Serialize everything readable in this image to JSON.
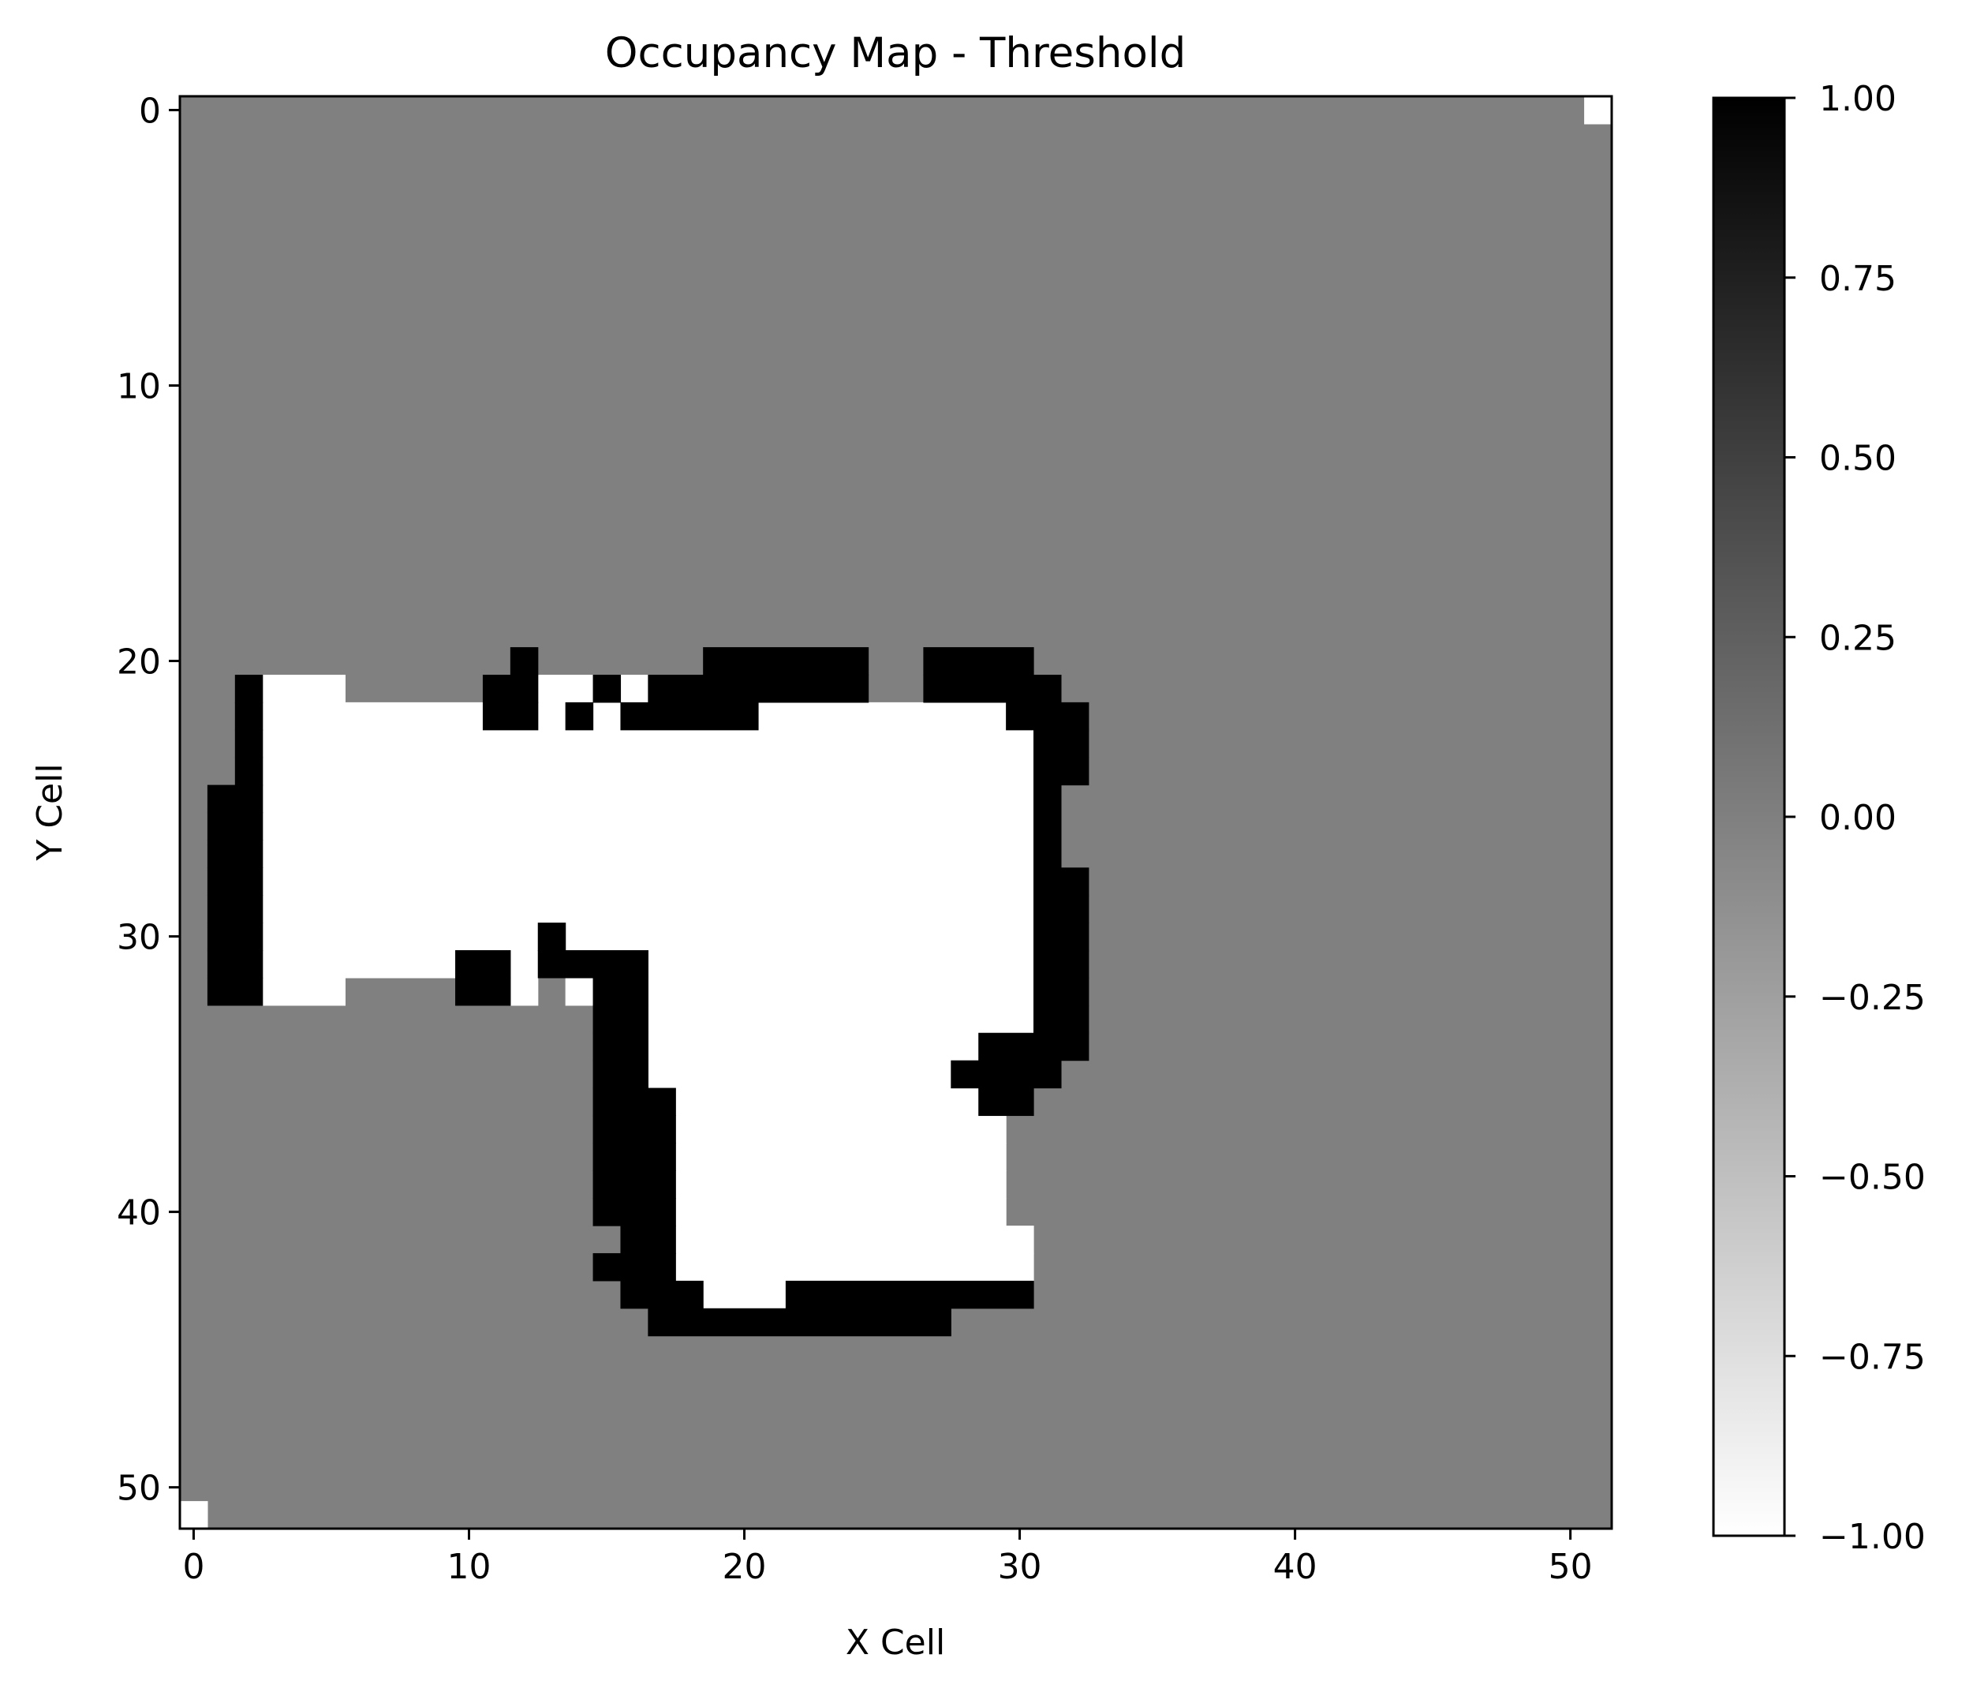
{
  "chart_data": {
    "type": "heatmap",
    "title": "Occupancy Map - Threshold",
    "xlabel": "X Cell",
    "ylabel": "Y Cell",
    "grid_size": [
      52,
      52
    ],
    "xlim": [
      -0.5,
      51.5
    ],
    "ylim": [
      51.5,
      -0.5
    ],
    "xticks": [
      0,
      10,
      20,
      30,
      40,
      50
    ],
    "yticks": [
      0,
      10,
      20,
      30,
      40,
      50
    ],
    "colormap": "gray_r",
    "clim": [
      -1.0,
      1.0
    ],
    "colorbar": {
      "ticks": [
        1.0,
        0.75,
        0.5,
        0.25,
        0.0,
        -0.25,
        -0.5,
        -0.75,
        -1.0
      ],
      "tick_labels": [
        "1.00",
        "0.75",
        "0.50",
        "0.25",
        "0.00",
        "−0.25",
        "−0.50",
        "−0.75",
        "−1.00"
      ]
    },
    "default_value": 0,
    "occupied_value": 1,
    "free_value": -1,
    "occupied_runs": [
      {
        "y": 20,
        "x": [
          12,
          12
        ]
      },
      {
        "y": 20,
        "x": [
          19,
          24
        ]
      },
      {
        "y": 20,
        "x": [
          27,
          30
        ]
      },
      {
        "y": 21,
        "x": [
          2,
          2
        ]
      },
      {
        "y": 21,
        "x": [
          11,
          12
        ]
      },
      {
        "y": 21,
        "x": [
          15,
          15
        ]
      },
      {
        "y": 21,
        "x": [
          17,
          24
        ]
      },
      {
        "y": 21,
        "x": [
          27,
          31
        ]
      },
      {
        "y": 22,
        "x": [
          2,
          2
        ]
      },
      {
        "y": 22,
        "x": [
          11,
          12
        ]
      },
      {
        "y": 22,
        "x": [
          14,
          14
        ]
      },
      {
        "y": 22,
        "x": [
          16,
          20
        ]
      },
      {
        "y": 22,
        "x": [
          30,
          32
        ]
      },
      {
        "y": 23,
        "x": [
          2,
          2
        ]
      },
      {
        "y": 23,
        "x": [
          31,
          32
        ]
      },
      {
        "y": 24,
        "x": [
          2,
          2
        ]
      },
      {
        "y": 24,
        "x": [
          31,
          32
        ]
      },
      {
        "y": 25,
        "x": [
          1,
          2
        ]
      },
      {
        "y": 25,
        "x": [
          31,
          31
        ]
      },
      {
        "y": 26,
        "x": [
          1,
          2
        ]
      },
      {
        "y": 26,
        "x": [
          31,
          31
        ]
      },
      {
        "y": 27,
        "x": [
          1,
          2
        ]
      },
      {
        "y": 27,
        "x": [
          31,
          31
        ]
      },
      {
        "y": 28,
        "x": [
          1,
          2
        ]
      },
      {
        "y": 28,
        "x": [
          31,
          32
        ]
      },
      {
        "y": 29,
        "x": [
          1,
          2
        ]
      },
      {
        "y": 29,
        "x": [
          31,
          32
        ]
      },
      {
        "y": 30,
        "x": [
          1,
          2
        ]
      },
      {
        "y": 30,
        "x": [
          13,
          13
        ]
      },
      {
        "y": 30,
        "x": [
          31,
          32
        ]
      },
      {
        "y": 31,
        "x": [
          1,
          2
        ]
      },
      {
        "y": 31,
        "x": [
          10,
          11
        ]
      },
      {
        "y": 31,
        "x": [
          13,
          16
        ]
      },
      {
        "y": 31,
        "x": [
          31,
          32
        ]
      },
      {
        "y": 32,
        "x": [
          1,
          2
        ]
      },
      {
        "y": 32,
        "x": [
          10,
          11
        ]
      },
      {
        "y": 32,
        "x": [
          15,
          16
        ]
      },
      {
        "y": 32,
        "x": [
          31,
          32
        ]
      },
      {
        "y": 33,
        "x": [
          15,
          16
        ]
      },
      {
        "y": 33,
        "x": [
          31,
          32
        ]
      },
      {
        "y": 34,
        "x": [
          15,
          16
        ]
      },
      {
        "y": 34,
        "x": [
          29,
          32
        ]
      },
      {
        "y": 35,
        "x": [
          15,
          16
        ]
      },
      {
        "y": 35,
        "x": [
          28,
          31
        ]
      },
      {
        "y": 36,
        "x": [
          15,
          17
        ]
      },
      {
        "y": 36,
        "x": [
          29,
          30
        ]
      },
      {
        "y": 37,
        "x": [
          15,
          17
        ]
      },
      {
        "y": 38,
        "x": [
          15,
          17
        ]
      },
      {
        "y": 39,
        "x": [
          15,
          17
        ]
      },
      {
        "y": 40,
        "x": [
          15,
          17
        ]
      },
      {
        "y": 41,
        "x": [
          16,
          17
        ]
      },
      {
        "y": 42,
        "x": [
          15,
          17
        ]
      },
      {
        "y": 43,
        "x": [
          16,
          18
        ]
      },
      {
        "y": 43,
        "x": [
          22,
          30
        ]
      },
      {
        "y": 44,
        "x": [
          17,
          27
        ]
      }
    ],
    "free_runs": [
      {
        "y": 0,
        "x": [
          51,
          51
        ]
      },
      {
        "y": 21,
        "x": [
          3,
          5
        ]
      },
      {
        "y": 21,
        "x": [
          13,
          14
        ]
      },
      {
        "y": 21,
        "x": [
          16,
          16
        ]
      },
      {
        "y": 22,
        "x": [
          3,
          10
        ]
      },
      {
        "y": 22,
        "x": [
          13,
          13
        ]
      },
      {
        "y": 22,
        "x": [
          15,
          15
        ]
      },
      {
        "y": 22,
        "x": [
          21,
          29
        ]
      },
      {
        "y": 23,
        "x": [
          3,
          30
        ]
      },
      {
        "y": 24,
        "x": [
          3,
          30
        ]
      },
      {
        "y": 25,
        "x": [
          3,
          30
        ]
      },
      {
        "y": 26,
        "x": [
          3,
          30
        ]
      },
      {
        "y": 27,
        "x": [
          3,
          30
        ]
      },
      {
        "y": 28,
        "x": [
          3,
          30
        ]
      },
      {
        "y": 29,
        "x": [
          3,
          30
        ]
      },
      {
        "y": 30,
        "x": [
          3,
          12
        ]
      },
      {
        "y": 30,
        "x": [
          14,
          30
        ]
      },
      {
        "y": 31,
        "x": [
          3,
          9
        ]
      },
      {
        "y": 31,
        "x": [
          12,
          12
        ]
      },
      {
        "y": 31,
        "x": [
          17,
          30
        ]
      },
      {
        "y": 32,
        "x": [
          3,
          5
        ]
      },
      {
        "y": 32,
        "x": [
          12,
          12
        ]
      },
      {
        "y": 32,
        "x": [
          14,
          14
        ]
      },
      {
        "y": 32,
        "x": [
          17,
          30
        ]
      },
      {
        "y": 33,
        "x": [
          17,
          30
        ]
      },
      {
        "y": 34,
        "x": [
          17,
          28
        ]
      },
      {
        "y": 35,
        "x": [
          17,
          27
        ]
      },
      {
        "y": 36,
        "x": [
          18,
          28
        ]
      },
      {
        "y": 37,
        "x": [
          18,
          29
        ]
      },
      {
        "y": 38,
        "x": [
          18,
          29
        ]
      },
      {
        "y": 39,
        "x": [
          18,
          29
        ]
      },
      {
        "y": 40,
        "x": [
          18,
          29
        ]
      },
      {
        "y": 41,
        "x": [
          18,
          30
        ]
      },
      {
        "y": 42,
        "x": [
          18,
          30
        ]
      },
      {
        "y": 43,
        "x": [
          19,
          21
        ]
      },
      {
        "y": 51,
        "x": [
          0,
          0
        ]
      }
    ]
  }
}
